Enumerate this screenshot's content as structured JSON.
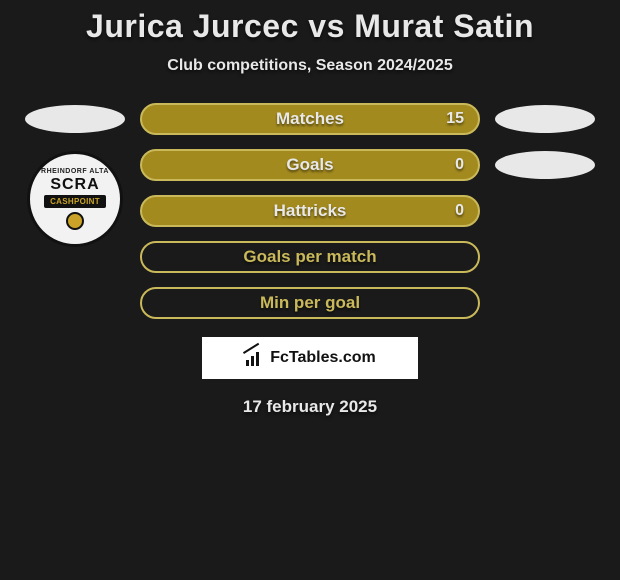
{
  "background_color": "#1a1a1a",
  "title": "Jurica Jurcec vs Murat Satin",
  "title_color": "#e8e8e8",
  "title_fontsize": 32,
  "subtitle": "Club competitions, Season 2024/2025",
  "subtitle_color": "#e8e8e8",
  "subtitle_fontsize": 16,
  "left_side": {
    "ellipse_color": "#e8e8e8",
    "badge": {
      "bg": "#f2f2f2",
      "border": "#111111",
      "arc_text": "RHEINDORF ALTA",
      "top_text": "SCRA",
      "mid_text": "CASHPOINT",
      "mid_bg": "#111111",
      "mid_color": "#c9a227",
      "ball_color": "#c9a227"
    }
  },
  "right_side": {
    "ellipse_color": "#e8e8e8",
    "ellipse2_color": "#e8e8e8"
  },
  "stats": [
    {
      "label": "Matches",
      "value_right": "15",
      "fill": "#a38a1f",
      "border": "#c9b95a",
      "label_color": "#e8e8e8",
      "value_color": "#e8e8e8"
    },
    {
      "label": "Goals",
      "value_right": "0",
      "fill": "#a38a1f",
      "border": "#c9b95a",
      "label_color": "#e8e8e8",
      "value_color": "#e8e8e8"
    },
    {
      "label": "Hattricks",
      "value_right": "0",
      "fill": "#a38a1f",
      "border": "#c9b95a",
      "label_color": "#e8e8e8",
      "value_color": "#e8e8e8"
    },
    {
      "label": "Goals per match",
      "value_right": "",
      "fill": "transparent",
      "border": "#c9b95a",
      "label_color": "#c9b95a",
      "value_color": "#c9b95a"
    },
    {
      "label": "Min per goal",
      "value_right": "",
      "fill": "transparent",
      "border": "#c9b95a",
      "label_color": "#c9b95a",
      "value_color": "#c9b95a"
    }
  ],
  "stat_bar": {
    "height": 32,
    "border_radius": 16,
    "border_width": 2,
    "gap": 14,
    "label_fontsize": 17
  },
  "brand": {
    "text": "FcTables.com",
    "bg": "#ffffff",
    "color": "#111111",
    "fontsize": 16
  },
  "date": "17 february 2025",
  "date_color": "#e8e8e8",
  "date_fontsize": 17
}
